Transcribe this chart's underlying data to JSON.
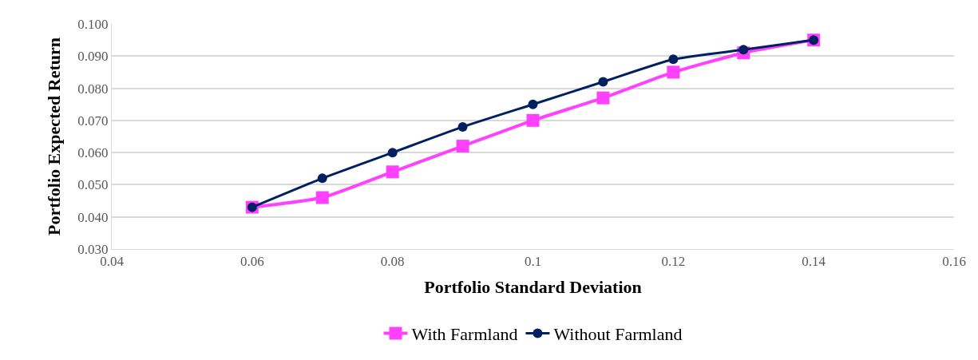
{
  "chart_data": {
    "type": "line",
    "xlabel": "Portfolio Standard Deviation",
    "ylabel": "Portfolio Expected Return",
    "x": [
      0.06,
      0.07,
      0.08,
      0.09,
      0.1,
      0.11,
      0.12,
      0.13,
      0.14
    ],
    "series": [
      {
        "name": "With Farmland",
        "color": "#ff40ff",
        "marker": "square",
        "values": [
          0.043,
          0.046,
          0.054,
          0.062,
          0.07,
          0.077,
          0.085,
          0.091,
          0.095
        ]
      },
      {
        "name": "Without Farmland",
        "color": "#002060",
        "marker": "circle",
        "values": [
          0.043,
          0.052,
          0.06,
          0.068,
          0.075,
          0.082,
          0.089,
          0.092,
          0.095
        ]
      }
    ],
    "xlim": [
      0.04,
      0.16
    ],
    "xticks": [
      0.04,
      0.06,
      0.08,
      0.1,
      0.12,
      0.14,
      0.16
    ],
    "ylim": [
      0.03,
      0.1
    ],
    "yticks": [
      {
        "value": 0.03,
        "label": "0.030"
      },
      {
        "value": 0.04,
        "label": "0.040"
      },
      {
        "value": 0.05,
        "label": "0.050"
      },
      {
        "value": 0.06,
        "label": "0.060"
      },
      {
        "value": 0.07,
        "label": "0.070"
      },
      {
        "value": 0.08,
        "label": "0.080"
      },
      {
        "value": 0.09,
        "label": "0.090"
      },
      {
        "value": 0.1,
        "label": "0.100"
      }
    ],
    "grid": "y",
    "legend": "bottom",
    "line_style": "solid"
  }
}
